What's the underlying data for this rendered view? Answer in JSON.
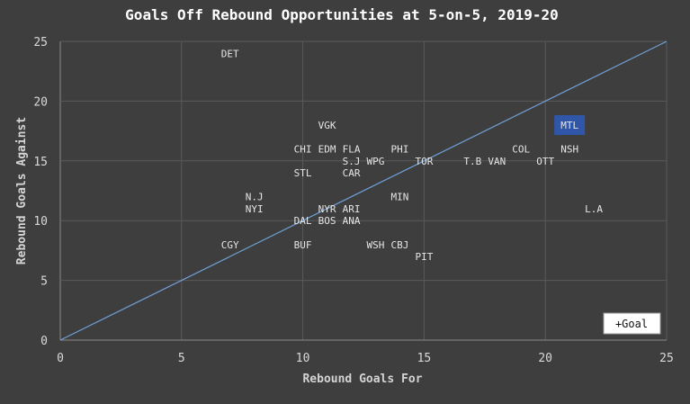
{
  "chart_data": {
    "type": "scatter",
    "title": "Goals Off Rebound Opportunities at 5-on-5, 2019-20",
    "xlabel": "Rebound Goals For",
    "ylabel": "Rebound Goals Against",
    "xlim": [
      0,
      25
    ],
    "ylim": [
      0,
      25
    ],
    "xticks": [
      "0",
      "5",
      "10",
      "15",
      "20",
      "25"
    ],
    "yticks": [
      "0",
      "5",
      "10",
      "15",
      "20",
      "25"
    ],
    "grid": true,
    "reference_line": "y = x",
    "highlight": "MTL",
    "highlight_color": "#2f56a8",
    "line_color": "#6fa0d6",
    "points": [
      {
        "label": "DET",
        "x": 7,
        "y": 24
      },
      {
        "label": "VGK",
        "x": 11,
        "y": 18
      },
      {
        "label": "MTL",
        "x": 21,
        "y": 18
      },
      {
        "label": "CHI",
        "x": 10,
        "y": 16
      },
      {
        "label": "EDM",
        "x": 11,
        "y": 16
      },
      {
        "label": "FLA",
        "x": 12,
        "y": 16
      },
      {
        "label": "PHI",
        "x": 14,
        "y": 16
      },
      {
        "label": "COL",
        "x": 19,
        "y": 16
      },
      {
        "label": "NSH",
        "x": 21,
        "y": 16
      },
      {
        "label": "S.J",
        "x": 12,
        "y": 15
      },
      {
        "label": "WPG",
        "x": 13,
        "y": 15
      },
      {
        "label": "TOR",
        "x": 15,
        "y": 15
      },
      {
        "label": "T.B",
        "x": 17,
        "y": 15
      },
      {
        "label": "VAN",
        "x": 18,
        "y": 15
      },
      {
        "label": "OTT",
        "x": 20,
        "y": 15
      },
      {
        "label": "STL",
        "x": 10,
        "y": 14
      },
      {
        "label": "CAR",
        "x": 12,
        "y": 14
      },
      {
        "label": "N.J",
        "x": 8,
        "y": 12
      },
      {
        "label": "MIN",
        "x": 14,
        "y": 12
      },
      {
        "label": "NYI",
        "x": 8,
        "y": 11
      },
      {
        "label": "NYR",
        "x": 11,
        "y": 11
      },
      {
        "label": "ARI",
        "x": 12,
        "y": 11
      },
      {
        "label": "L.A",
        "x": 22,
        "y": 11
      },
      {
        "label": "DAL",
        "x": 10,
        "y": 10
      },
      {
        "label": "BOS",
        "x": 11,
        "y": 10
      },
      {
        "label": "ANA",
        "x": 12,
        "y": 10
      },
      {
        "label": "CGY",
        "x": 7,
        "y": 8
      },
      {
        "label": "BUF",
        "x": 10,
        "y": 8
      },
      {
        "label": "WSH",
        "x": 13,
        "y": 8
      },
      {
        "label": "CBJ",
        "x": 14,
        "y": 8
      },
      {
        "label": "PIT",
        "x": 15,
        "y": 7
      }
    ]
  },
  "controls": {
    "goal_button_label": "+Goal"
  }
}
